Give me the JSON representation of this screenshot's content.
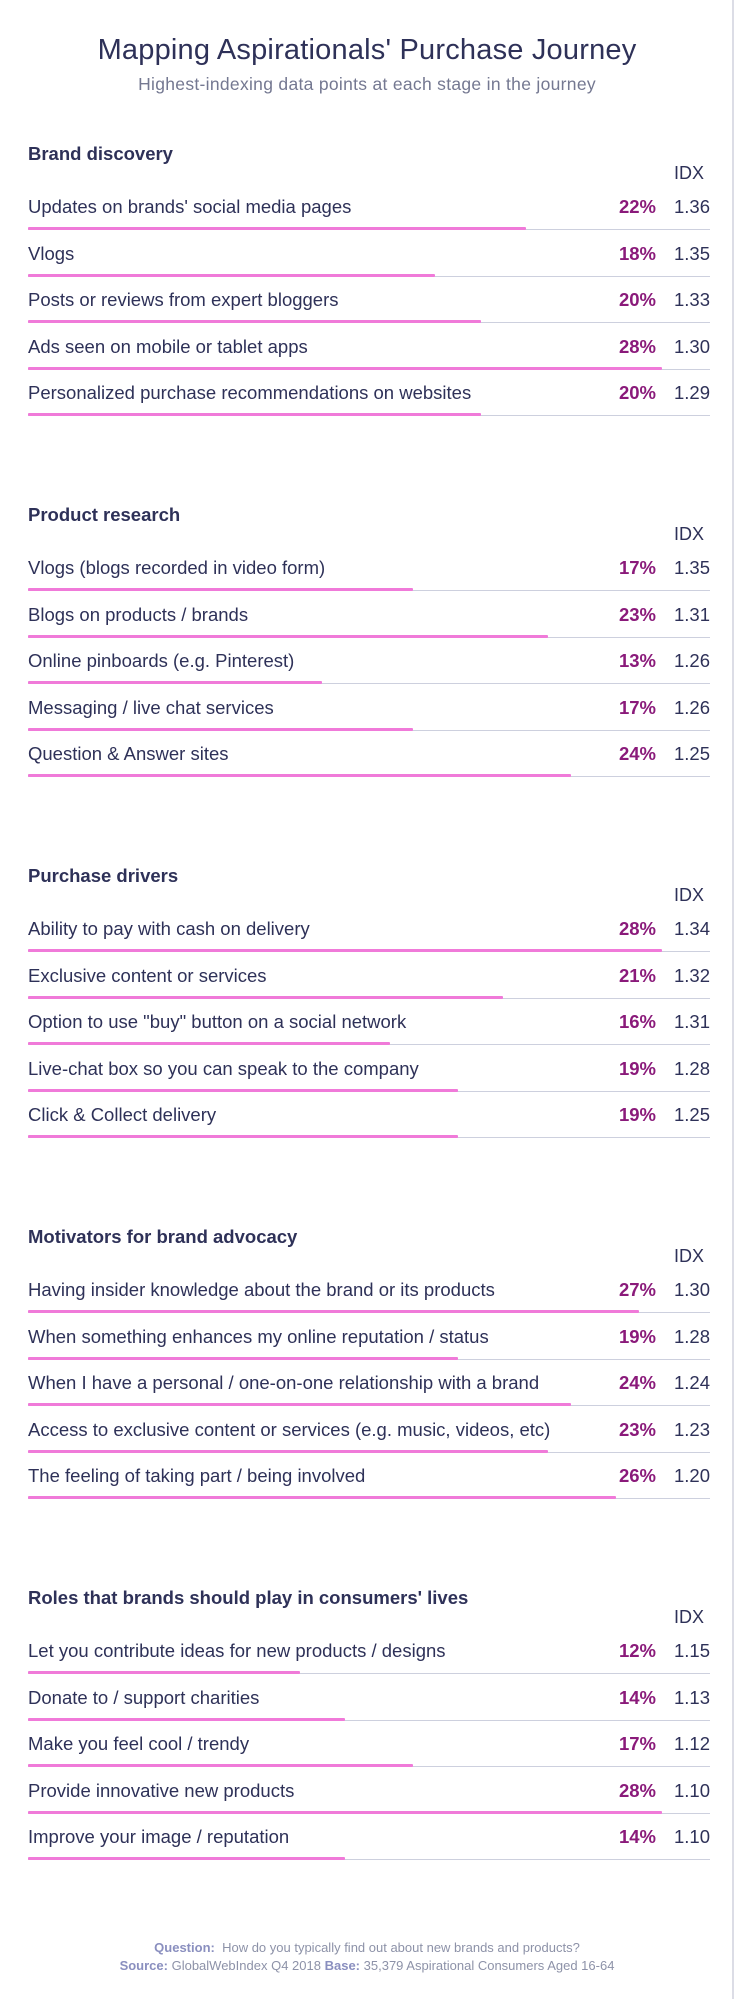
{
  "title": "Mapping Aspirationals' Purchase Journey",
  "subtitle": "Highest-indexing data points at each stage in the journey",
  "chart_data": {
    "type": "bar",
    "idx_label": "IDX",
    "sections": [
      {
        "title": "Brand discovery",
        "rows": [
          {
            "label": "Updates on brands' social media pages",
            "pct": "22%",
            "value": 22,
            "idx": "1.36"
          },
          {
            "label": "Vlogs",
            "pct": "18%",
            "value": 18,
            "idx": "1.35"
          },
          {
            "label": "Posts or reviews from expert bloggers",
            "pct": "20%",
            "value": 20,
            "idx": "1.33"
          },
          {
            "label": "Ads seen on mobile or tablet apps",
            "pct": "28%",
            "value": 28,
            "idx": "1.30"
          },
          {
            "label": "Personalized purchase recommendations on websites",
            "pct": "20%",
            "value": 20,
            "idx": "1.29"
          }
        ]
      },
      {
        "title": "Product research",
        "rows": [
          {
            "label": "Vlogs (blogs recorded in video form)",
            "pct": "17%",
            "value": 17,
            "idx": "1.35"
          },
          {
            "label": "Blogs on products / brands",
            "pct": "23%",
            "value": 23,
            "idx": "1.31"
          },
          {
            "label": "Online pinboards (e.g. Pinterest)",
            "pct": "13%",
            "value": 13,
            "idx": "1.26"
          },
          {
            "label": "Messaging / live chat services",
            "pct": "17%",
            "value": 17,
            "idx": "1.26"
          },
          {
            "label": "Question & Answer sites",
            "pct": "24%",
            "value": 24,
            "idx": "1.25"
          }
        ]
      },
      {
        "title": "Purchase drivers",
        "rows": [
          {
            "label": "Ability to pay with cash on delivery",
            "pct": "28%",
            "value": 28,
            "idx": "1.34"
          },
          {
            "label": "Exclusive content or services",
            "pct": "21%",
            "value": 21,
            "idx": "1.32"
          },
          {
            "label": "Option to use \"buy\" button on a social network",
            "pct": "16%",
            "value": 16,
            "idx": "1.31"
          },
          {
            "label": "Live-chat box so you can speak to the company",
            "pct": "19%",
            "value": 19,
            "idx": "1.28"
          },
          {
            "label": "Click & Collect delivery",
            "pct": "19%",
            "value": 19,
            "idx": "1.25"
          }
        ]
      },
      {
        "title": "Motivators for brand advocacy",
        "rows": [
          {
            "label": "Having insider knowledge about the brand or its products",
            "pct": "27%",
            "value": 27,
            "idx": "1.30"
          },
          {
            "label": "When something enhances my online reputation / status",
            "pct": "19%",
            "value": 19,
            "idx": "1.28"
          },
          {
            "label": "When I have a personal / one-on-one relationship with a brand",
            "pct": "24%",
            "value": 24,
            "idx": "1.24"
          },
          {
            "label": "Access to exclusive content or services (e.g. music, videos, etc)",
            "pct": "23%",
            "value": 23,
            "idx": "1.23"
          },
          {
            "label": "The feeling of taking part / being involved",
            "pct": "26%",
            "value": 26,
            "idx": "1.20"
          }
        ]
      },
      {
        "title": "Roles that brands should play in consumers' lives",
        "rows": [
          {
            "label": "Let you contribute ideas for new products / designs",
            "pct": "12%",
            "value": 12,
            "idx": "1.15"
          },
          {
            "label": "Donate to / support charities",
            "pct": "14%",
            "value": 14,
            "idx": "1.13"
          },
          {
            "label": "Make you feel cool / trendy",
            "pct": "17%",
            "value": 17,
            "idx": "1.12"
          },
          {
            "label": "Provide innovative new products",
            "pct": "28%",
            "value": 28,
            "idx": "1.10"
          },
          {
            "label": "Improve your image / reputation",
            "pct": "14%",
            "value": 14,
            "idx": "1.10"
          }
        ]
      }
    ]
  },
  "footer": {
    "question_label": "Question:",
    "question_text": "How do you typically find out about new brands and products?",
    "source_label": "Source:",
    "source_text": "GlobalWebIndex Q4 2018",
    "base_label": "Base:",
    "base_text": "35,379 Aspirational Consumers Aged 16-64"
  },
  "colors": {
    "bar": "#f07ad9",
    "percent": "#8a1a7a",
    "text": "#2e3158"
  }
}
